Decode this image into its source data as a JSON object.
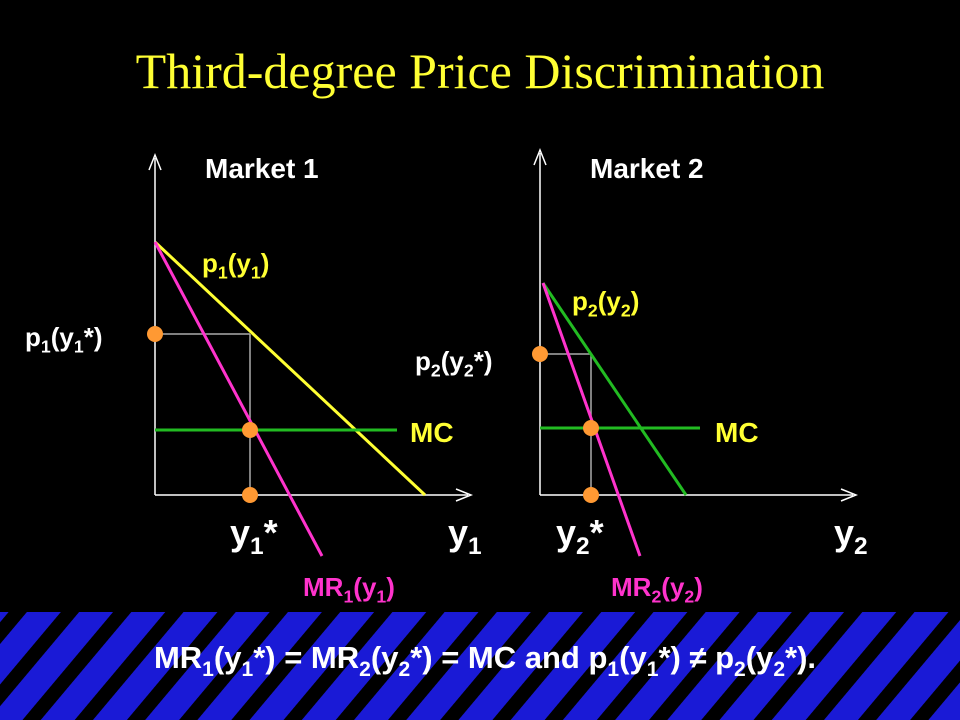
{
  "title": "Third-degree Price Discrimination",
  "markets": [
    {
      "heading": "Market 1",
      "demand_label": [
        "p",
        "1",
        "(y",
        "1",
        ")"
      ],
      "price_label": [
        "p",
        "1",
        "(y",
        "1",
        "*)"
      ],
      "mc_label": "MC",
      "quantity_label": [
        "y",
        "1",
        "*"
      ],
      "axis_label": [
        "y",
        "1"
      ],
      "mr_label": [
        "MR",
        "1",
        "(y",
        "1",
        ")"
      ]
    },
    {
      "heading": "Market 2",
      "demand_label": [
        "p",
        "2",
        "(y",
        "2",
        ")"
      ],
      "price_label": [
        "p",
        "2",
        "(y",
        "2",
        "*)"
      ],
      "mc_label": "MC",
      "quantity_label": [
        "y",
        "2",
        "*"
      ],
      "axis_label": [
        "y",
        "2"
      ],
      "mr_label": [
        "MR",
        "2",
        "(y",
        "2",
        ")"
      ]
    }
  ],
  "conclusion": [
    "MR",
    "1",
    "(y",
    "1",
    "*) = MR",
    "2",
    "(y",
    "2",
    "*) = MC and p",
    "1",
    "(y",
    "1",
    "*) ≠ p",
    "2",
    "(y",
    "2",
    "*)."
  ]
}
